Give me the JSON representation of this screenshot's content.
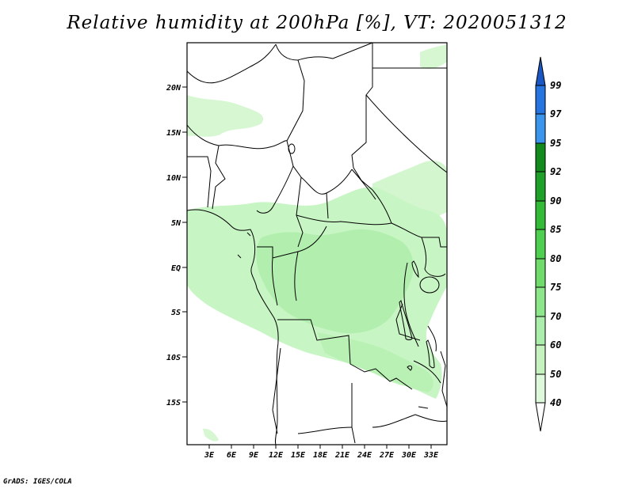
{
  "title": "Relative humidity at 200hPa [%], VT: 2020051312",
  "credit": "GrADS: IGES/COLA",
  "map": {
    "x_ticks": [
      "3E",
      "6E",
      "9E",
      "12E",
      "15E",
      "18E",
      "21E",
      "24E",
      "27E",
      "30E",
      "33E"
    ],
    "y_ticks": [
      "20N",
      "15N",
      "10N",
      "5N",
      "EQ",
      "5S",
      "10S",
      "15S"
    ]
  },
  "colorbar": {
    "labels": [
      "40",
      "50",
      "60",
      "70",
      "75",
      "80",
      "85",
      "90",
      "92",
      "95",
      "97",
      "99"
    ],
    "colors": [
      "#f0fdef",
      "#ddf8da",
      "#c6f2c0",
      "#abedaa",
      "#8ee68a",
      "#6edb6b",
      "#4ecf50",
      "#33ba37",
      "#1fa028",
      "#128a1c",
      "#3c95ec",
      "#2574df",
      "#1a56c4"
    ],
    "units": "%"
  },
  "colors": {
    "humid_light": "#c8f5c4",
    "humid_mid": "#b2efae",
    "line": "#000000"
  }
}
